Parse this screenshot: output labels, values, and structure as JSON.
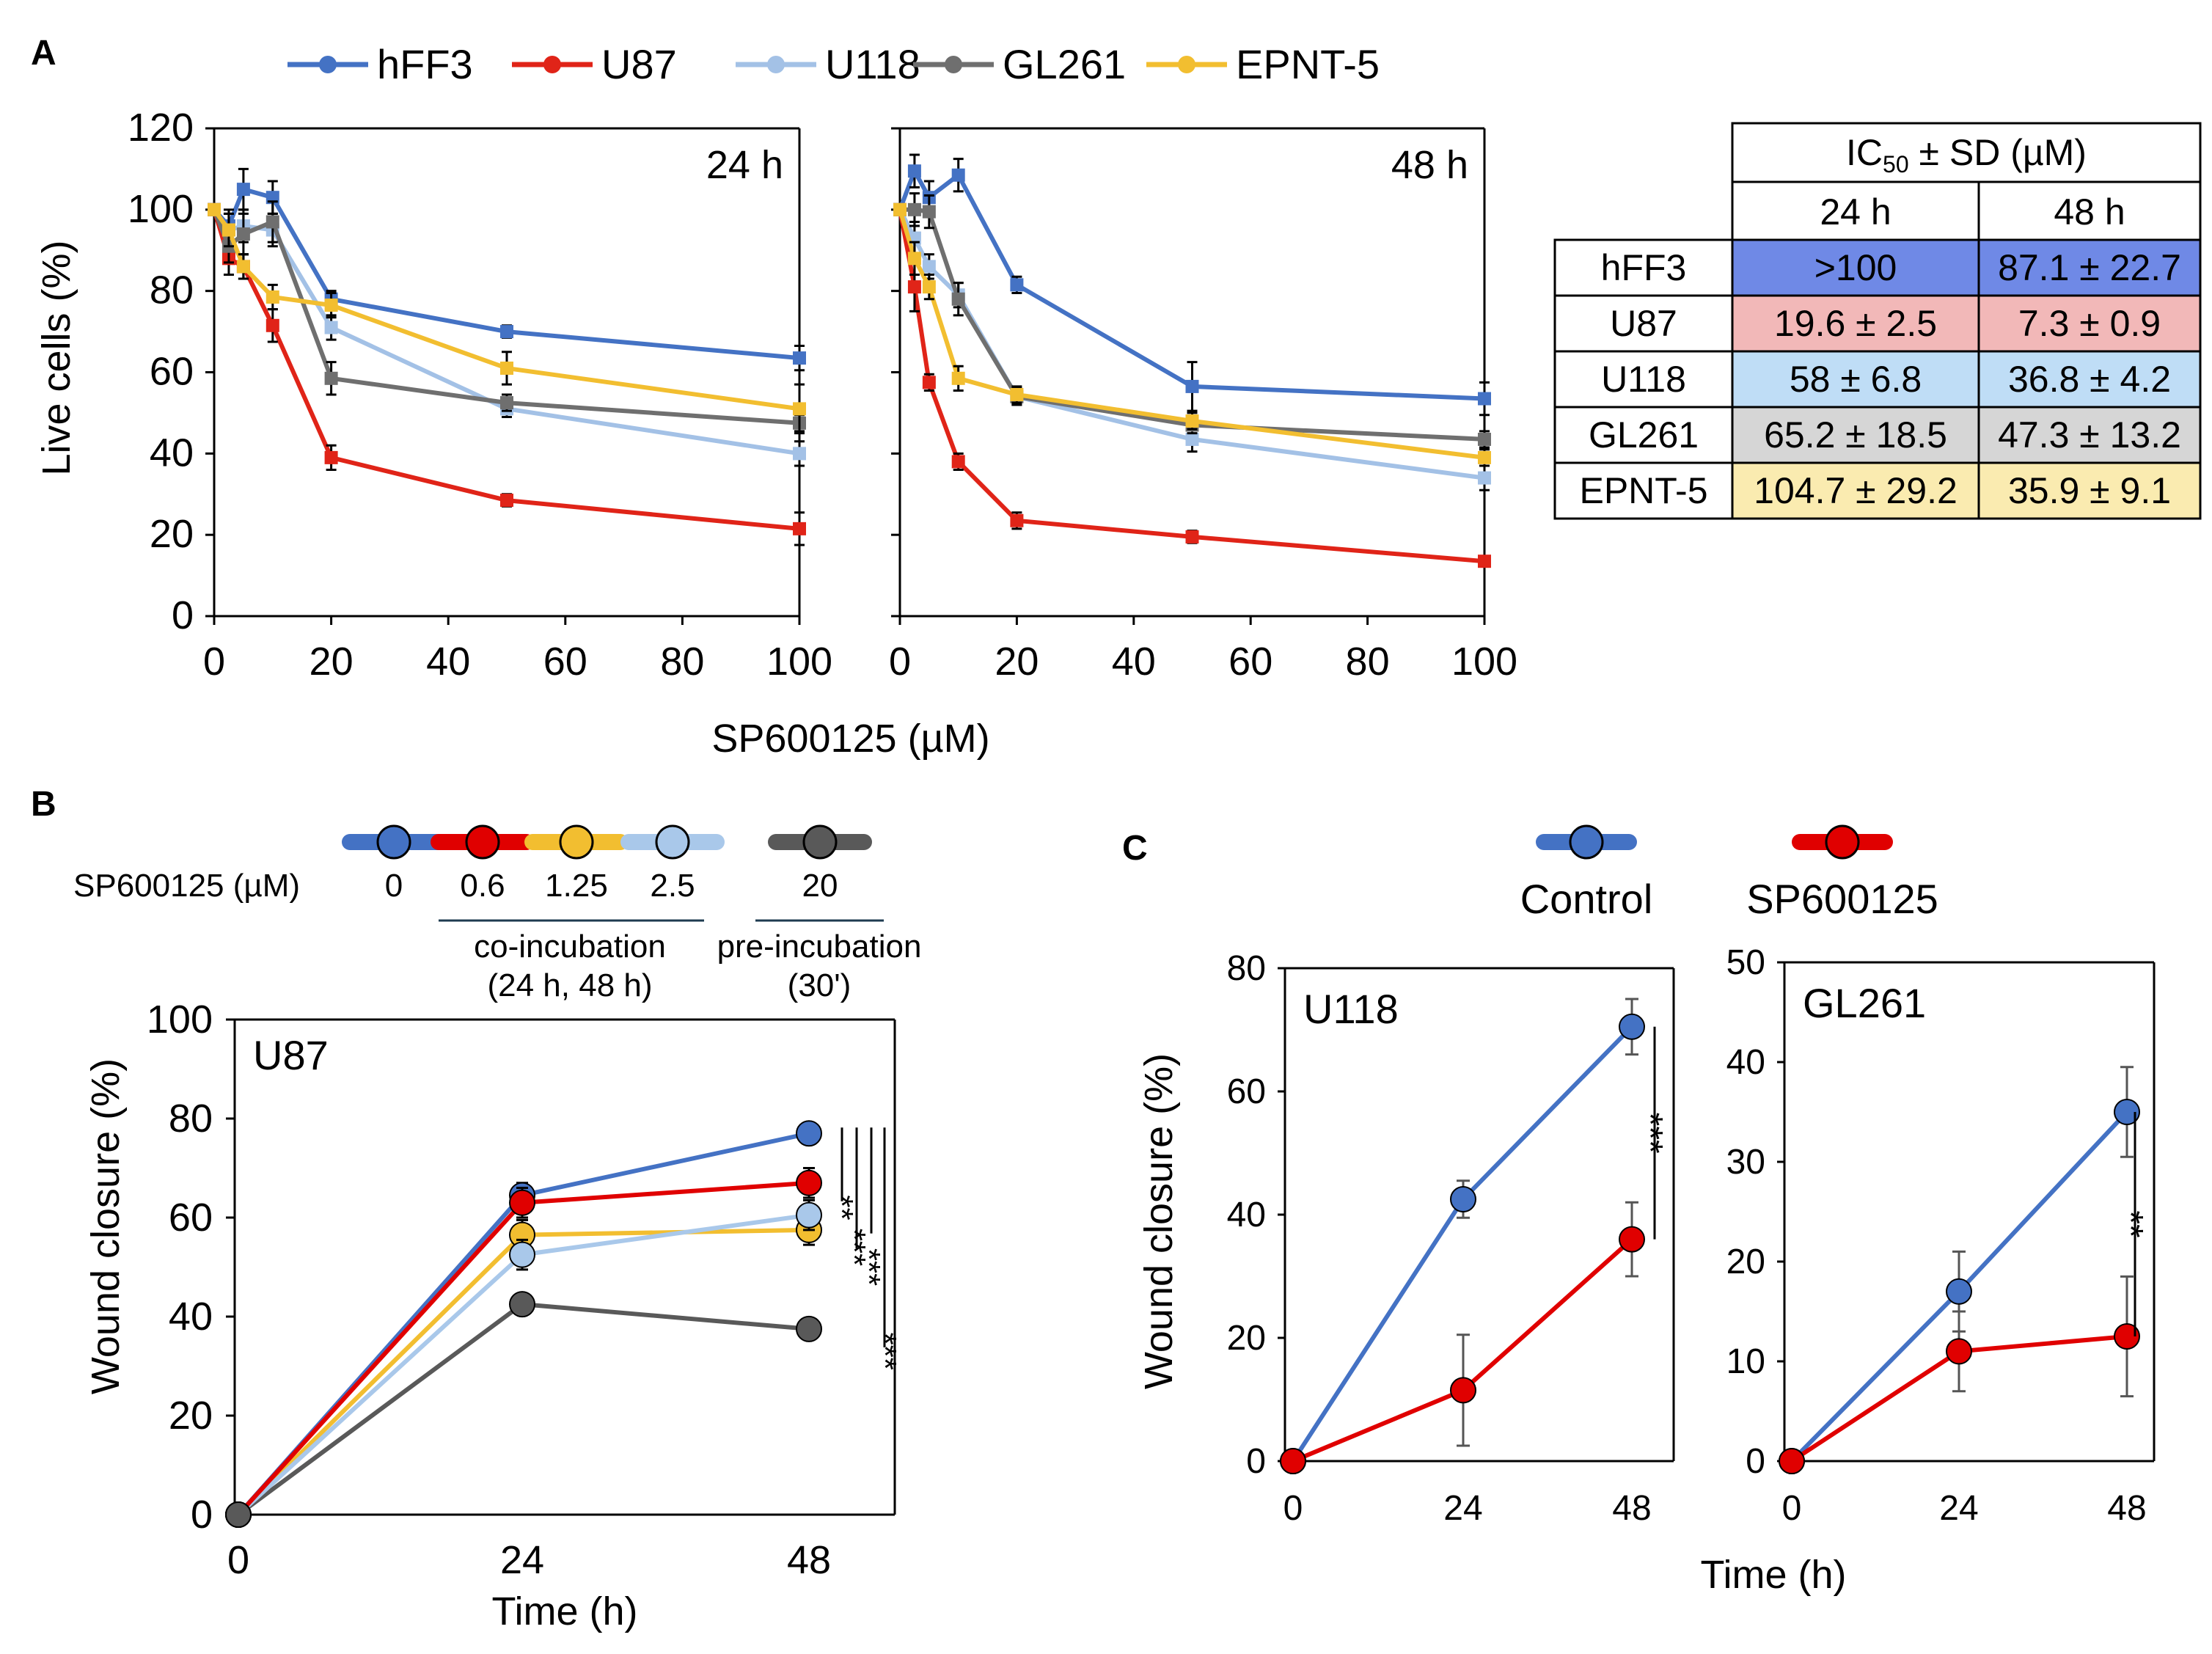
{
  "panel_labels": {
    "a": "A",
    "b": "B",
    "c": "C"
  },
  "colors": {
    "hFF3": "#4472C4",
    "U87": "#E02418",
    "U118": "#A3C1E6",
    "GL261": "#6F6F6F",
    "EPNT-5": "#F2BE30",
    "U87_B": "#E00000",
    "U118_B": "#A9C8EA",
    "EPNT_B": "#F2BE30",
    "dark": "#595959",
    "table": {
      "hFF3": "#6F89E6",
      "U87": "#F2B8B8",
      "U118": "#BFDDF6",
      "GL261": "#D6D6D6",
      "EPNT-5": "#FAEBB0"
    }
  },
  "legend_a": [
    "hFF3",
    "U87",
    "U118",
    "GL261",
    "EPNT-5"
  ],
  "chart_data": [
    {
      "id": "A-24h",
      "type": "line",
      "title": "24 h",
      "xlabel": "SP600125 (µM)",
      "ylabel": "Live cells (%)",
      "xlim": [
        0,
        100
      ],
      "ylim": [
        0,
        120
      ],
      "xticks": [
        "0",
        "20",
        "40",
        "60",
        "80",
        "100"
      ],
      "yticks": [
        "0",
        "20",
        "40",
        "60",
        "80",
        "100",
        "120"
      ],
      "x": [
        0,
        2.5,
        5,
        10,
        20,
        50,
        100
      ],
      "series": [
        {
          "name": "hFF3",
          "values": [
            100,
            96,
            105,
            103,
            78,
            70,
            63.5
          ],
          "err": [
            0,
            4,
            5,
            4,
            2,
            1.5,
            3
          ]
        },
        {
          "name": "U87",
          "values": [
            100,
            88,
            86,
            71.5,
            39,
            28.5,
            21.5
          ],
          "err": [
            0,
            4,
            3,
            4,
            3,
            1.5,
            4
          ]
        },
        {
          "name": "U118",
          "values": [
            100,
            95,
            96,
            95,
            71,
            51,
            40
          ],
          "err": [
            0,
            4,
            4,
            4,
            3,
            2,
            3
          ]
        },
        {
          "name": "GL261",
          "values": [
            100,
            91,
            94,
            97,
            58.5,
            52.5,
            47.5
          ],
          "err": [
            0,
            4,
            5,
            5,
            4,
            2,
            2
          ]
        },
        {
          "name": "EPNT-5",
          "values": [
            100,
            95,
            86,
            78.5,
            76.5,
            61,
            51
          ],
          "err": [
            0,
            4,
            3,
            3,
            3,
            4,
            6
          ]
        }
      ]
    },
    {
      "id": "A-48h",
      "type": "line",
      "title": "48 h",
      "xlim": [
        0,
        100
      ],
      "ylim": [
        0,
        120
      ],
      "xticks": [
        "0",
        "20",
        "40",
        "60",
        "80",
        "100"
      ],
      "yticks": [
        "0",
        "20",
        "40",
        "60",
        "80",
        "100",
        "120"
      ],
      "x": [
        0,
        2.5,
        5,
        10,
        20,
        50,
        100
      ],
      "series": [
        {
          "name": "hFF3",
          "values": [
            100,
            109.5,
            103,
            108.5,
            81.5,
            56.5,
            53.5
          ],
          "err": [
            0,
            4,
            4,
            4,
            2,
            6,
            4
          ]
        },
        {
          "name": "U87",
          "values": [
            100,
            81,
            57.5,
            38,
            23.5,
            19.5,
            13.5
          ],
          "err": [
            0,
            6,
            2,
            2,
            2,
            1.5,
            1
          ]
        },
        {
          "name": "U118",
          "values": [
            100,
            93,
            86,
            79,
            54,
            43.5,
            34
          ],
          "err": [
            0,
            4,
            3,
            3,
            2,
            3,
            3
          ]
        },
        {
          "name": "GL261",
          "values": [
            100,
            100,
            99.5,
            78,
            54,
            47,
            43.5
          ],
          "err": [
            0,
            4,
            4,
            4,
            2,
            2,
            2
          ]
        },
        {
          "name": "EPNT-5",
          "values": [
            100,
            88,
            81,
            58.5,
            54.5,
            48,
            39
          ],
          "err": [
            0,
            4,
            3,
            3,
            2,
            2,
            2
          ]
        }
      ]
    },
    {
      "id": "A-table",
      "type": "table",
      "title_main": "IC",
      "title_sub": "50",
      "title_rest": " ± SD (µM)",
      "columns": [
        "24 h",
        "48 h"
      ],
      "rows": [
        {
          "name": "hFF3",
          "values": [
            ">100",
            "87.1 ± 22.7"
          ]
        },
        {
          "name": "U87",
          "values": [
            "19.6 ± 2.5",
            "7.3 ± 0.9"
          ]
        },
        {
          "name": "U118",
          "values": [
            "58 ± 6.8",
            "36.8 ± 4.2"
          ]
        },
        {
          "name": "GL261",
          "values": [
            "65.2 ± 18.5",
            "47.3 ± 13.2"
          ]
        },
        {
          "name": "EPNT-5",
          "values": [
            "104.7 ± 29.2",
            "35.9 ± 9.1"
          ]
        }
      ]
    },
    {
      "id": "B-U87",
      "type": "line",
      "title": "U87",
      "xlabel": "Time (h)",
      "ylabel": "Wound closure (%)",
      "ylim": [
        0,
        100
      ],
      "x": [
        0,
        24,
        48
      ],
      "xticks": [
        "0",
        "24",
        "48"
      ],
      "yticks": [
        "0",
        "20",
        "40",
        "60",
        "80",
        "100"
      ],
      "series": [
        {
          "name": "0",
          "values": [
            0,
            64.5,
            77
          ],
          "err": [
            0,
            2.5,
            1
          ],
          "sig": ""
        },
        {
          "name": "0.6",
          "values": [
            0,
            63,
            67
          ],
          "err": [
            0,
            3,
            3
          ],
          "sig": "**"
        },
        {
          "name": "1.25",
          "values": [
            0,
            56.5,
            57.5
          ],
          "err": [
            0,
            3,
            3
          ],
          "sig": "***"
        },
        {
          "name": "2.5",
          "values": [
            0,
            52.5,
            60.5
          ],
          "err": [
            0,
            3,
            3
          ],
          "sig": "***"
        },
        {
          "name": "20",
          "values": [
            0,
            42.5,
            37.5
          ],
          "err": [
            0,
            1,
            1
          ],
          "sig": "***"
        }
      ]
    },
    {
      "id": "C-U118",
      "type": "line",
      "title": "U118",
      "xlabel": "Time (h)",
      "ylabel": "Wound closure (%)",
      "ylim": [
        0,
        80
      ],
      "x": [
        0,
        24,
        48
      ],
      "xticks": [
        "0",
        "24",
        "48"
      ],
      "yticks": [
        "0",
        "20",
        "40",
        "60",
        "80"
      ],
      "series": [
        {
          "name": "Control",
          "values": [
            0,
            42.5,
            70.5
          ],
          "err": [
            0,
            3,
            4.5
          ]
        },
        {
          "name": "SP600125",
          "values": [
            0,
            11.5,
            36
          ],
          "err": [
            0,
            9,
            6
          ]
        }
      ],
      "sig": "***"
    },
    {
      "id": "C-GL261",
      "type": "line",
      "title": "GL261",
      "ylim": [
        0,
        50
      ],
      "x": [
        0,
        24,
        48
      ],
      "xticks": [
        "0",
        "24",
        "48"
      ],
      "yticks": [
        "0",
        "10",
        "20",
        "30",
        "40",
        "50"
      ],
      "series": [
        {
          "name": "Control",
          "values": [
            0,
            17,
            35
          ],
          "err": [
            0,
            4,
            4.5
          ]
        },
        {
          "name": "SP600125",
          "values": [
            0,
            11,
            12.5
          ],
          "err": [
            0,
            4,
            6
          ]
        }
      ],
      "sig": "**"
    }
  ],
  "legend_b": {
    "label": "SP600125 (µM)",
    "items": [
      "0",
      "0.6",
      "1.25",
      "2.5",
      "20"
    ],
    "co": "co-incubation",
    "co_sub": "(24 h, 48 h)",
    "pre": "pre-incubation",
    "pre_sub": "(30')"
  },
  "legend_c": [
    "Control",
    "SP600125"
  ]
}
